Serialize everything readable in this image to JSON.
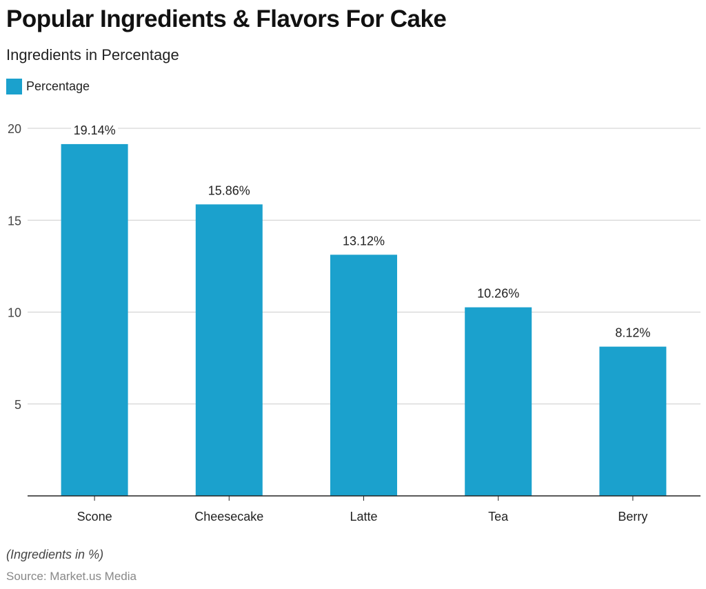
{
  "chart_data": {
    "type": "bar",
    "title": "Popular Ingredients & Flavors For Cake",
    "subtitle": "Ingredients in Percentage",
    "categories": [
      "Scone",
      "Cheesecake",
      "Latte",
      "Tea",
      "Berry"
    ],
    "series": [
      {
        "name": "Percentage",
        "values": [
          19.14,
          15.86,
          13.12,
          10.26,
          8.12
        ]
      }
    ],
    "data_labels": [
      "19.14%",
      "15.86%",
      "13.12%",
      "10.26%",
      "8.12%"
    ],
    "ylim": [
      0,
      20
    ],
    "yticks": [
      5,
      10,
      15,
      20
    ],
    "grid": true,
    "legend": "top-left",
    "color": "#1ba1cd",
    "note": "(Ingredients in %)",
    "source": "Source: Market.us Media"
  }
}
